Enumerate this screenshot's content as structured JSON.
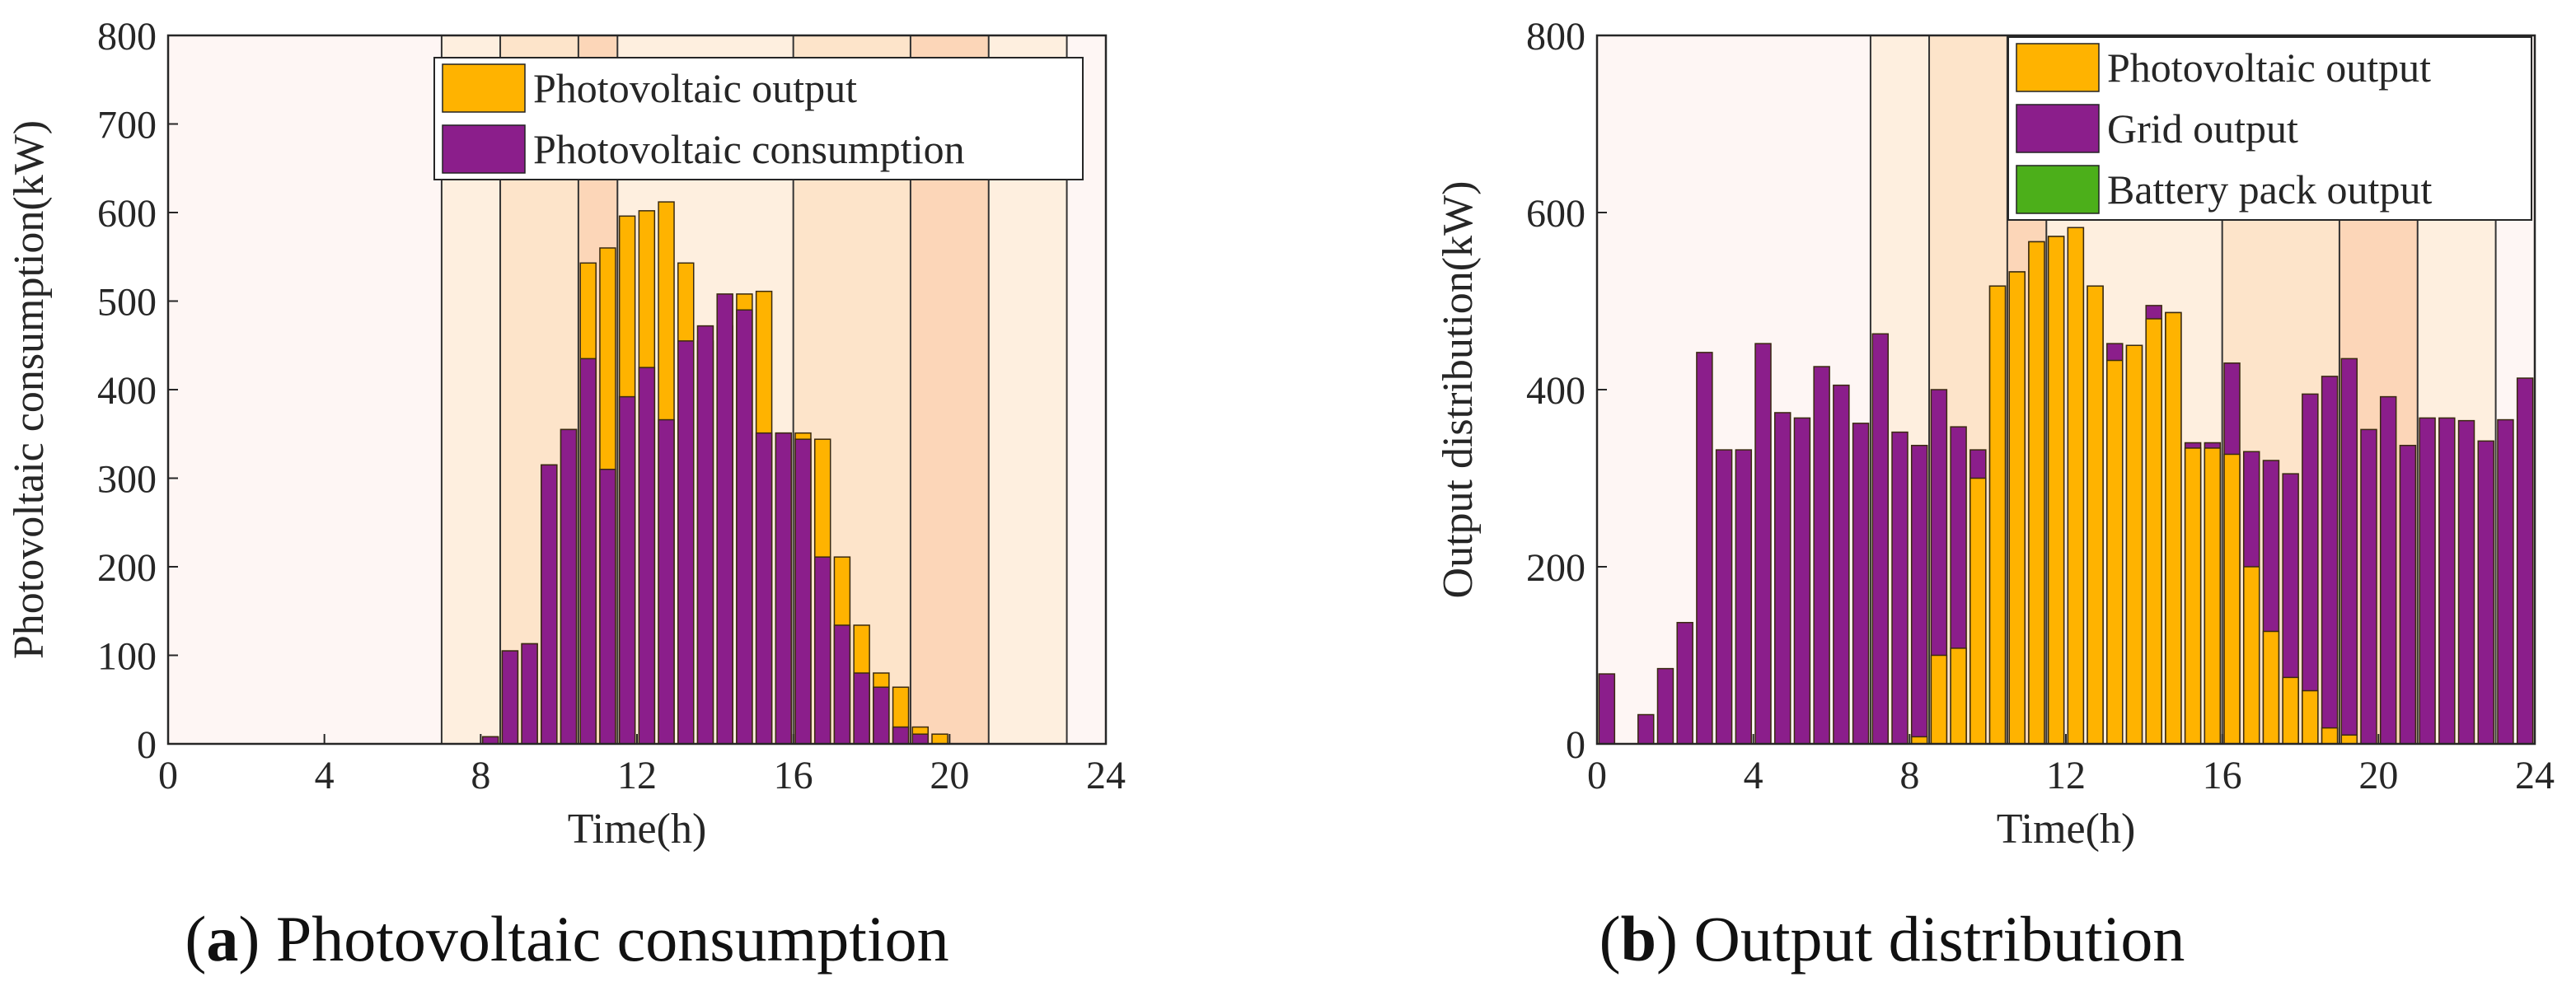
{
  "figure": {
    "subfigures": [
      {
        "caption_letter": "a",
        "caption_text": "Photovoltaic consumption"
      },
      {
        "caption_letter": "b",
        "caption_text": "Output distribution"
      }
    ]
  },
  "colors": {
    "pv_output": "#FFB300",
    "purple": "#8B1E8B",
    "battery": "#4CAF1A",
    "valley_band": "#FEF6F4",
    "flat_band": "#FEEFDF",
    "peak_band": "#FDE4CA",
    "sharp_band": "#FCD6B8",
    "axis": "#262626"
  },
  "chart_data": [
    {
      "type": "bar",
      "stacking": "overlay",
      "xlabel": "Time(h)",
      "ylabel": "Photovoltaic consumption(kW)",
      "xlim": [
        0,
        24
      ],
      "ylim": [
        0,
        800
      ],
      "xticks": [
        0,
        4,
        8,
        12,
        16,
        20,
        24
      ],
      "yticks": [
        0,
        100,
        200,
        300,
        400,
        500,
        600,
        700,
        800
      ],
      "bar_width_hours": 0.4,
      "legend_placement": "top-right",
      "time_bands": [
        {
          "start": 0,
          "end": 7,
          "kind": "valley"
        },
        {
          "start": 7,
          "end": 8.5,
          "kind": "flat"
        },
        {
          "start": 8.5,
          "end": 10.5,
          "kind": "peak"
        },
        {
          "start": 10.5,
          "end": 11.5,
          "kind": "sharp"
        },
        {
          "start": 11.5,
          "end": 16,
          "kind": "flat"
        },
        {
          "start": 16,
          "end": 19,
          "kind": "peak"
        },
        {
          "start": 19,
          "end": 21,
          "kind": "sharp"
        },
        {
          "start": 21,
          "end": 23,
          "kind": "flat"
        },
        {
          "start": 23,
          "end": 24,
          "kind": "valley"
        }
      ],
      "x": [
        0.25,
        0.75,
        1.25,
        1.75,
        2.25,
        2.75,
        3.25,
        3.75,
        4.25,
        4.75,
        5.25,
        5.75,
        6.25,
        6.75,
        7.25,
        7.75,
        8.25,
        8.75,
        9.25,
        9.75,
        10.25,
        10.75,
        11.25,
        11.75,
        12.25,
        12.75,
        13.25,
        13.75,
        14.25,
        14.75,
        15.25,
        15.75,
        16.25,
        16.75,
        17.25,
        17.75,
        18.25,
        18.75,
        19.25,
        19.75,
        20.25,
        20.75,
        21.25,
        21.75,
        22.25,
        22.75,
        23.25,
        23.75
      ],
      "series": [
        {
          "name": "Photovoltaic output",
          "color": "#FFB300",
          "values": [
            0,
            0,
            0,
            0,
            0,
            0,
            0,
            0,
            0,
            0,
            0,
            0,
            0,
            0,
            0,
            0,
            8,
            105,
            113,
            315,
            355,
            543,
            560,
            596,
            602,
            612,
            543,
            455,
            472,
            508,
            511,
            351,
            351,
            344,
            211,
            134,
            80,
            64,
            19,
            11,
            0,
            0,
            0,
            0,
            0,
            0,
            0,
            0
          ]
        },
        {
          "name": "Photovoltaic consumption",
          "color": "#8B1E8B",
          "values": [
            0,
            0,
            0,
            0,
            0,
            0,
            0,
            0,
            0,
            0,
            0,
            0,
            0,
            0,
            0,
            0,
            8,
            105,
            113,
            315,
            355,
            435,
            310,
            392,
            425,
            366,
            455,
            472,
            508,
            490,
            351,
            351,
            344,
            211,
            134,
            80,
            64,
            19,
            11,
            0,
            0,
            0,
            0,
            0,
            0,
            0,
            0,
            0
          ]
        }
      ]
    },
    {
      "type": "bar",
      "stacking": "overlay",
      "xlabel": "Time(h)",
      "ylabel": "Output distribution(kW)",
      "xlim": [
        0,
        24
      ],
      "ylim": [
        0,
        800
      ],
      "xticks": [
        0,
        4,
        8,
        12,
        16,
        20,
        24
      ],
      "yticks": [
        0,
        200,
        400,
        600,
        800
      ],
      "bar_width_hours": 0.4,
      "legend_placement": "top-right",
      "time_bands": [
        {
          "start": 0,
          "end": 7,
          "kind": "valley"
        },
        {
          "start": 7,
          "end": 8.5,
          "kind": "flat"
        },
        {
          "start": 8.5,
          "end": 10.5,
          "kind": "peak"
        },
        {
          "start": 10.5,
          "end": 11.5,
          "kind": "sharp"
        },
        {
          "start": 11.5,
          "end": 16,
          "kind": "flat"
        },
        {
          "start": 16,
          "end": 19,
          "kind": "peak"
        },
        {
          "start": 19,
          "end": 21,
          "kind": "sharp"
        },
        {
          "start": 21,
          "end": 23,
          "kind": "flat"
        },
        {
          "start": 23,
          "end": 24,
          "kind": "valley"
        }
      ],
      "x": [
        0.25,
        0.75,
        1.25,
        1.75,
        2.25,
        2.75,
        3.25,
        3.75,
        4.25,
        4.75,
        5.25,
        5.75,
        6.25,
        6.75,
        7.25,
        7.75,
        8.25,
        8.75,
        9.25,
        9.75,
        10.25,
        10.75,
        11.25,
        11.75,
        12.25,
        12.75,
        13.25,
        13.75,
        14.25,
        14.75,
        15.25,
        15.75,
        16.25,
        16.75,
        17.25,
        17.75,
        18.25,
        18.75,
        19.25,
        19.75,
        20.25,
        20.75,
        21.25,
        21.75,
        22.25,
        22.75,
        23.25,
        23.75
      ],
      "series": [
        {
          "name": "Grid output",
          "color": "#8B1E8B",
          "values": [
            79,
            0,
            33,
            85,
            137,
            442,
            332,
            332,
            452,
            374,
            368,
            426,
            405,
            362,
            463,
            352,
            337,
            400,
            358,
            332,
            517,
            533,
            567,
            573,
            583,
            517,
            452,
            450,
            495,
            487,
            340,
            340,
            430,
            330,
            320,
            305,
            395,
            415,
            435,
            355,
            392,
            337,
            368,
            368,
            365,
            342,
            366,
            413
          ]
        },
        {
          "name": "Photovoltaic output",
          "color": "#FFB300",
          "values": [
            0,
            0,
            0,
            0,
            0,
            0,
            0,
            0,
            0,
            0,
            0,
            0,
            0,
            0,
            0,
            0,
            8,
            100,
            108,
            300,
            517,
            533,
            567,
            573,
            583,
            517,
            433,
            450,
            480,
            487,
            334,
            334,
            327,
            200,
            127,
            75,
            60,
            18,
            10,
            0,
            0,
            0,
            0,
            0,
            0,
            0,
            0,
            0
          ]
        },
        {
          "name": "Battery pack output",
          "color": "#4CAF1A",
          "values": [
            0,
            0,
            0,
            0,
            0,
            0,
            0,
            0,
            0,
            0,
            0,
            0,
            0,
            0,
            0,
            0,
            0,
            0,
            0,
            0,
            0,
            0,
            0,
            0,
            0,
            0,
            0,
            0,
            0,
            0,
            0,
            0,
            0,
            0,
            0,
            0,
            0,
            0,
            0,
            0,
            0,
            0,
            0,
            0,
            0,
            0,
            0,
            0
          ]
        }
      ]
    }
  ]
}
